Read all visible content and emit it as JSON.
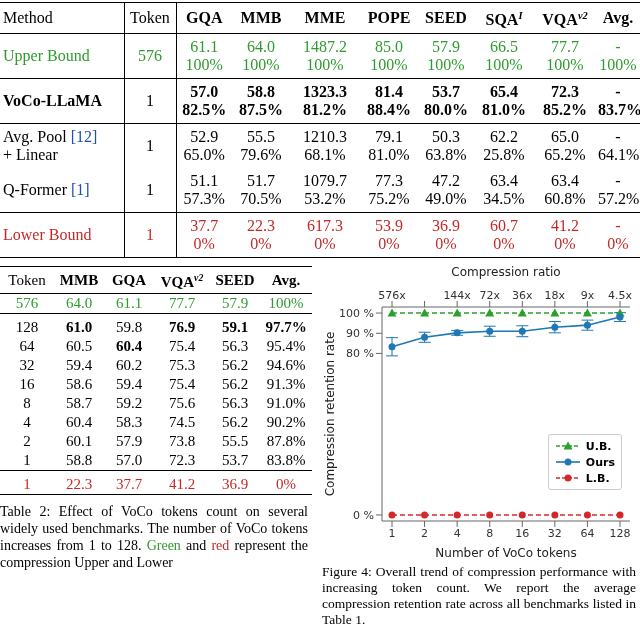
{
  "table1": {
    "header": [
      "Method",
      "Token",
      "GQA",
      "MMB",
      "MME",
      "POPE",
      "SEED",
      {
        "text": "SQA",
        "sup": "I"
      },
      {
        "text": "VQA",
        "sup": "v2"
      },
      "Avg."
    ],
    "rows": [
      {
        "method": [
          "Upper Bound"
        ],
        "token": "576",
        "cells": [
          [
            "61.1",
            "100%"
          ],
          [
            "64.0",
            "100%"
          ],
          [
            "1487.2",
            "100%"
          ],
          [
            "85.0",
            "100%"
          ],
          [
            "57.9",
            "100%"
          ],
          [
            "66.5",
            "100%"
          ],
          [
            "77.7",
            "100%"
          ],
          [
            "-",
            "100%"
          ]
        ]
      },
      {
        "method": [
          "VoCo-LLaMA"
        ],
        "token": "1",
        "cells": [
          [
            "57.0",
            "82.5%"
          ],
          [
            "58.8",
            "87.5%"
          ],
          [
            "1323.3",
            "81.2%"
          ],
          [
            "81.4",
            "88.4%"
          ],
          [
            "53.7",
            "80.0%"
          ],
          [
            "65.4",
            "81.0%"
          ],
          [
            "72.3",
            "85.2%"
          ],
          [
            "-",
            "83.7%"
          ]
        ]
      },
      {
        "method": [
          "Avg. Pool [12]",
          "+ Linear"
        ],
        "token": "1",
        "cells": [
          [
            "52.9",
            "65.0%"
          ],
          [
            "55.5",
            "79.6%"
          ],
          [
            "1210.3",
            "68.1%"
          ],
          [
            "79.1",
            "81.0%"
          ],
          [
            "50.3",
            "63.8%"
          ],
          [
            "62.2",
            "25.8%"
          ],
          [
            "65.0",
            "65.2%"
          ],
          [
            "-",
            "64.1%"
          ]
        ]
      },
      {
        "method": [
          "Q-Former [1]"
        ],
        "token": "1",
        "cells": [
          [
            "51.1",
            "57.3%"
          ],
          [
            "51.7",
            "70.5%"
          ],
          [
            "1079.7",
            "53.2%"
          ],
          [
            "77.3",
            "75.2%"
          ],
          [
            "47.2",
            "49.0%"
          ],
          [
            "63.4",
            "34.5%"
          ],
          [
            "63.4",
            "60.8%"
          ],
          [
            "-",
            "57.2%"
          ]
        ]
      },
      {
        "method": [
          "Lower Bound"
        ],
        "token": "1",
        "cells": [
          [
            "37.7",
            "0%"
          ],
          [
            "22.3",
            "0%"
          ],
          [
            "617.3",
            "0%"
          ],
          [
            "53.9",
            "0%"
          ],
          [
            "36.9",
            "0%"
          ],
          [
            "60.7",
            "0%"
          ],
          [
            "41.2",
            "0%"
          ],
          [
            "-",
            "0%"
          ]
        ]
      }
    ]
  },
  "table2": {
    "header": [
      "Token",
      "MMB",
      "GQA",
      {
        "text": "VQA",
        "sup": "v2"
      },
      "SEED",
      "Avg."
    ],
    "rows": [
      [
        "576",
        "64.0",
        "61.1",
        "77.7",
        "57.9",
        "100%"
      ],
      [
        "128",
        "61.0",
        "59.8",
        "76.9",
        "59.1",
        "97.7%"
      ],
      [
        "64",
        "60.5",
        "60.4",
        "75.4",
        "56.3",
        "95.4%"
      ],
      [
        "32",
        "59.4",
        "60.2",
        "75.3",
        "56.2",
        "94.6%"
      ],
      [
        "16",
        "58.6",
        "59.4",
        "75.4",
        "56.2",
        "91.3%"
      ],
      [
        "8",
        "58.7",
        "59.2",
        "75.6",
        "56.3",
        "91.0%"
      ],
      [
        "4",
        "60.4",
        "58.3",
        "74.5",
        "56.2",
        "90.2%"
      ],
      [
        "2",
        "60.1",
        "57.9",
        "73.8",
        "55.5",
        "87.8%"
      ],
      [
        "1",
        "58.8",
        "57.0",
        "72.3",
        "53.7",
        "83.8%"
      ],
      [
        "1",
        "22.3",
        "37.7",
        "41.2",
        "36.9",
        "0%"
      ]
    ],
    "caption": [
      "Table 2: Effect of VoCo tokens count on several widely used benchmarks. The number of VoCo tokens increases from 1 to 128. ",
      "Green",
      " and ",
      "red",
      " represent the compression Upper and Lower"
    ]
  },
  "figure_caption": "Figure 4: Overall trend of compression performance with increasing token count. We report the average compression retention rate across all benchmarks listed in Table 1.",
  "chart_data": {
    "type": "line",
    "x_label": "Number of VoCo tokens",
    "y_label": "Compression retention rate",
    "categories": [
      "1",
      "2",
      "4",
      "8",
      "16",
      "32",
      "64",
      "128"
    ],
    "top_axis": {
      "label": "Compression ratio",
      "categories": [
        "576x",
        null,
        "144x",
        "72x",
        "36x",
        "18x",
        "9x",
        "4.5x"
      ]
    },
    "series": [
      {
        "name": "U.B.",
        "color": "#2ca02c",
        "marker": "triangle",
        "line_style": "dashed",
        "values": [
          100,
          100,
          100,
          100,
          100,
          100,
          100,
          100
        ]
      },
      {
        "name": "Ours",
        "color": "#1f77b4",
        "marker": "circle",
        "line_style": "solid",
        "values": [
          83.3,
          88.0,
          90.2,
          91.0,
          91.0,
          93.0,
          94.0,
          98.0
        ],
        "errors": [
          4.5,
          2.5,
          1.2,
          2.5,
          2.7,
          2.8,
          2.5,
          2.2
        ]
      },
      {
        "name": "L.B.",
        "color": "#d62728",
        "marker": "circle",
        "line_style": "dashed",
        "values": [
          0,
          0,
          0,
          0,
          0,
          0,
          0,
          0
        ]
      }
    ],
    "ylim": [
      -3,
      103
    ],
    "yticks": [
      {
        "value": 0,
        "label": "0 %"
      },
      {
        "value": 80,
        "label": "80 %"
      },
      {
        "value": 90,
        "label": "90 %"
      },
      {
        "value": 100,
        "label": "100 %"
      }
    ],
    "grid": false,
    "legend": "lower right"
  }
}
